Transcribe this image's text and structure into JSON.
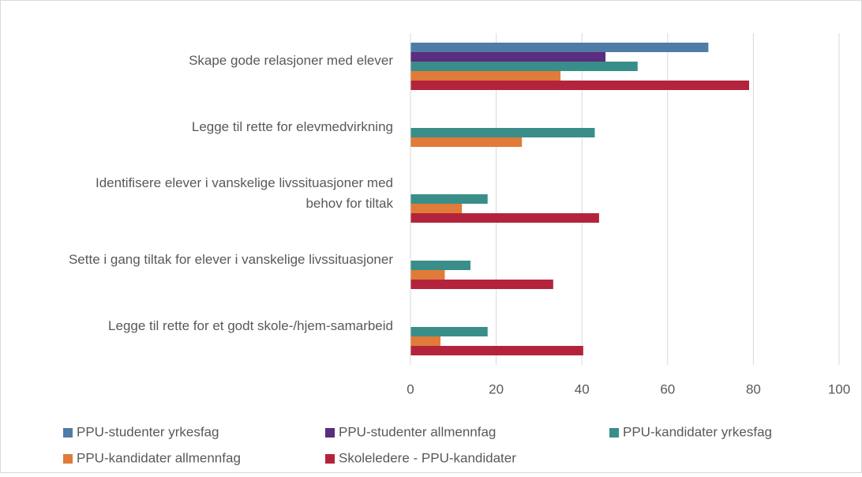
{
  "chart_data": {
    "type": "bar",
    "orientation": "horizontal",
    "categories": [
      "Skape gode relasjoner med elever",
      "Legge til rette for elevmedvirkning",
      "Identifisere elever i vanskelige livssituasjoner med behov for tiltak",
      "Sette i gang tiltak for elever i vanskelige livssituasjoner",
      "Legge til rette for et godt skole-/hjem-samarbeid"
    ],
    "series": [
      {
        "name": "PPU-studenter yrkesfag",
        "color": "#4e7ca7",
        "values": [
          69.5,
          null,
          null,
          null,
          null
        ]
      },
      {
        "name": "PPU-studenter allmennfag",
        "color": "#5a2d7e",
        "values": [
          45.5,
          null,
          null,
          null,
          null
        ]
      },
      {
        "name": "PPU-kandidater yrkesfag",
        "color": "#3a8e89",
        "values": [
          53,
          43,
          18,
          14,
          18
        ]
      },
      {
        "name": "PPU-kandidater allmennfag",
        "color": "#e07b39",
        "values": [
          35,
          26,
          12,
          8,
          7
        ]
      },
      {
        "name": "Skoleledere - PPU-kandidater",
        "color": "#b3243c",
        "values": [
          79,
          null,
          44,
          33.3,
          40.3
        ]
      }
    ],
    "xlim": [
      0,
      100
    ],
    "xticks": [
      0,
      20,
      40,
      60,
      80,
      100
    ],
    "grid": true,
    "legend": "bottom"
  }
}
